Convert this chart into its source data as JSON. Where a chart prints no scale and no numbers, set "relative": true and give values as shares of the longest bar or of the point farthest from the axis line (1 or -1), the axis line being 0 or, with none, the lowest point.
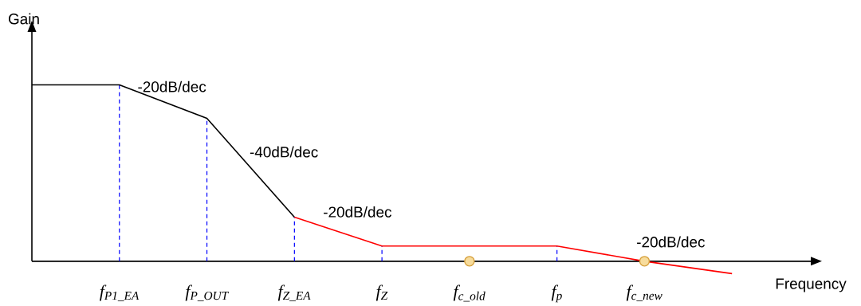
{
  "chart_data": {
    "type": "line",
    "relative": true,
    "xlabel": "Frequency",
    "ylabel": "Gain",
    "categories": [
      null,
      "f$_{P1_EA}$",
      "f$_{P_OUT}$",
      "f$_{Z_EA}$",
      "f$_{Z}$",
      "f$_{c_old}$",
      "f$_{p}$",
      "f$_{c_new}$",
      null
    ],
    "series": [
      {
        "color": "#000000",
        "values": [
          1,
          1,
          0.81,
          0.25,
          null,
          null,
          null,
          null,
          null
        ]
      },
      {
        "color": "#ff0000",
        "values": [
          null,
          null,
          null,
          0.25,
          0.086,
          0.086,
          0.086,
          0,
          -0.07
        ]
      },
      {
        "type": "scatter",
        "color": "#f7dc9c",
        "marker": "circle",
        "values": [
          null,
          null,
          null,
          null,
          null,
          0,
          null,
          0,
          null
        ]
      }
    ],
    "ref_lines": [
      {
        "axis": "x",
        "value": "f$_{P1_EA}$",
        "color": "#0000ff",
        "line_style": "dashed"
      },
      {
        "axis": "x",
        "value": "f$_{P_OUT}$",
        "color": "#0000ff",
        "line_style": "dashed"
      },
      {
        "axis": "x",
        "value": "f$_{Z_EA}$",
        "color": "#0000ff",
        "line_style": "dashed"
      },
      {
        "axis": "x",
        "value": "f$_{Z}$",
        "color": "#0000ff",
        "line_style": "dashed"
      },
      {
        "axis": "x",
        "value": "f$_{p}$",
        "color": "#0000ff",
        "line_style": "dashed"
      }
    ],
    "annotations": [
      "-20dB/dec",
      "-40dB/dec",
      "-20dB/dec",
      "-20dB/dec"
    ],
    "tick_labels": "x",
    "marker": "none",
    "line_style": "solid"
  }
}
